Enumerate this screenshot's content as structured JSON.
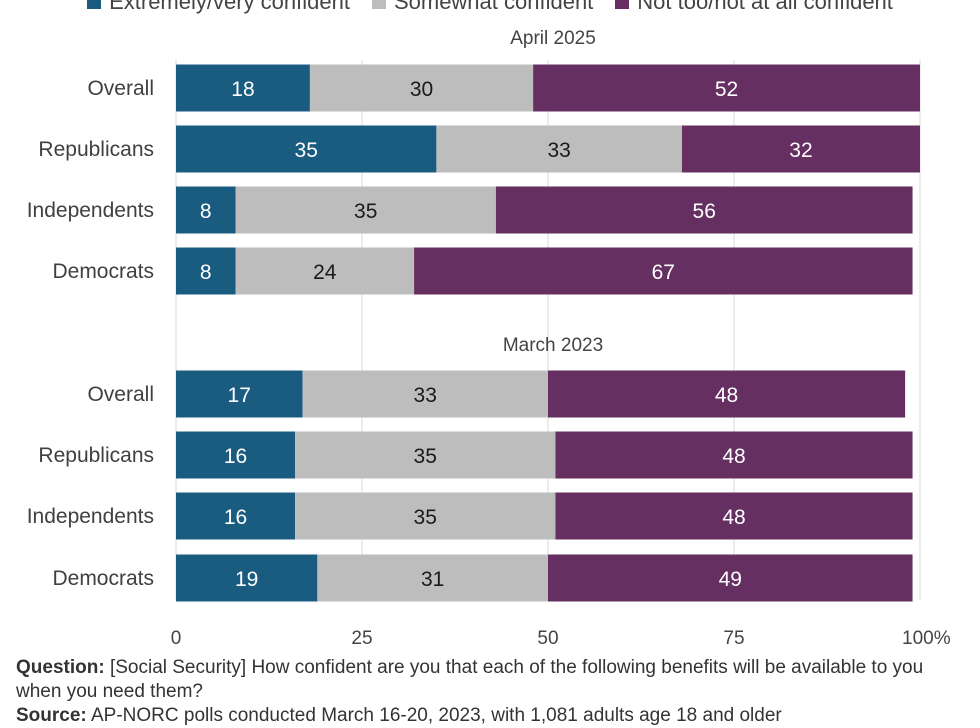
{
  "legend": [
    {
      "label": "Extremely/very confident",
      "color": "#1a5c80"
    },
    {
      "label": "Somewhat confident",
      "color": "#bdbdbd"
    },
    {
      "label": "Not too/not at all confident",
      "color": "#662f62"
    }
  ],
  "chart_data": {
    "type": "bar",
    "orientation": "horizontal",
    "stacked": true,
    "xlim": [
      0,
      100
    ],
    "x_ticks": [
      "0",
      "25",
      "50",
      "75",
      "100%"
    ],
    "x_tick_values": [
      0,
      25,
      50,
      75,
      100
    ],
    "grid": true,
    "legend_position": "top",
    "series_names": [
      "Extremely/very confident",
      "Somewhat confident",
      "Not too/not at all confident"
    ],
    "series_colors": [
      "#1a5c80",
      "#bdbdbd",
      "#662f62"
    ],
    "label_colors": [
      "#ffffff",
      "#1a1a1a",
      "#ffffff"
    ],
    "panels": [
      {
        "title": "April 2025",
        "rows": [
          {
            "category": "Overall",
            "values": [
              18,
              30,
              52
            ]
          },
          {
            "category": "Republicans",
            "values": [
              35,
              33,
              32
            ]
          },
          {
            "category": "Independents",
            "values": [
              8,
              35,
              56
            ]
          },
          {
            "category": "Democrats",
            "values": [
              8,
              24,
              67
            ]
          }
        ]
      },
      {
        "title": "March 2023",
        "rows": [
          {
            "category": "Overall",
            "values": [
              17,
              33,
              48
            ]
          },
          {
            "category": "Republicans",
            "values": [
              16,
              35,
              48
            ]
          },
          {
            "category": "Independents",
            "values": [
              16,
              35,
              48
            ]
          },
          {
            "category": "Democrats",
            "values": [
              19,
              31,
              49
            ]
          }
        ]
      }
    ]
  },
  "footnote": {
    "question_label": "Question:",
    "question_text": " [Social Security] How confident are you that each of the following benefits will be available to you when you need them?",
    "source_label": "Source:",
    "source_text": " AP-NORC polls conducted March 16-20, 2023, with 1,081 adults age 18 and older"
  }
}
